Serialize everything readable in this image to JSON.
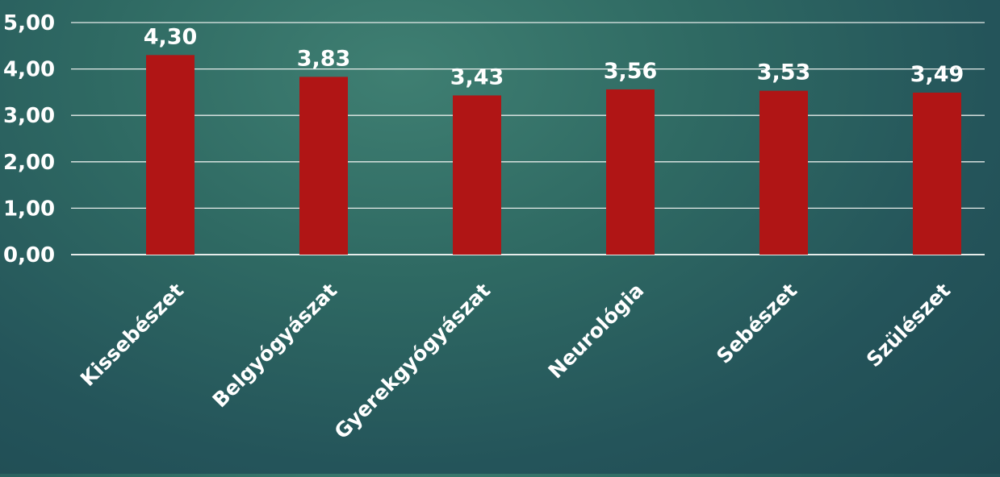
{
  "chart_data": {
    "type": "bar",
    "categories": [
      "Kissebészet",
      "Belgyógyászat",
      "Gyerekgyógyászat",
      "Neurológia",
      "Sebészet",
      "Szülészet"
    ],
    "values": [
      4.3,
      3.83,
      3.43,
      3.56,
      3.53,
      3.49
    ],
    "value_labels": [
      "4,30",
      "3,83",
      "3,43",
      "3,56",
      "3,53",
      "3,49"
    ],
    "y_ticks": [
      "0,00",
      "1,00",
      "2,00",
      "3,00",
      "4,00",
      "5,00"
    ],
    "ylim": [
      0,
      5
    ],
    "grid": true,
    "title": "",
    "xlabel": "",
    "ylabel": "",
    "colors": {
      "bar": "#b01515",
      "gridline": "#e6ecea",
      "text": "#ffffff"
    }
  }
}
